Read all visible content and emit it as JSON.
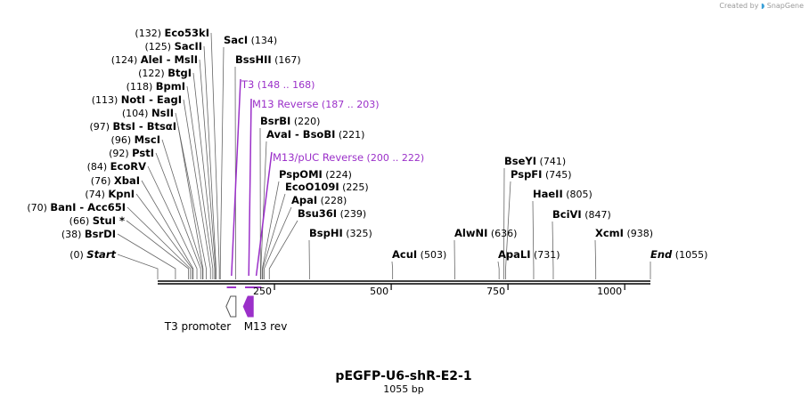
{
  "watermark": {
    "prefix": "Created by",
    "brand": "SnapGene"
  },
  "plasmid": {
    "name": "pEGFP-U6-shR-E2-1",
    "length_label": "1055 bp",
    "length": 1055
  },
  "colors": {
    "feature": "#9b30c9",
    "line": "#666666",
    "backbone": "#000000"
  },
  "ruler": {
    "ticks": [
      250,
      500,
      750,
      1000
    ]
  },
  "sites": [
    {
      "name": "Start",
      "pos": 0,
      "label_pos": "(0)",
      "italic": true,
      "side": "left"
    },
    {
      "name": "BsrDI",
      "pos": 38,
      "label_pos": "(38)",
      "side": "left"
    },
    {
      "name": "StuI *",
      "pos": 66,
      "label_pos": "(66)",
      "side": "left"
    },
    {
      "name": "BanI  -  Acc65I",
      "pos": 70,
      "label_pos": "(70)",
      "side": "left"
    },
    {
      "name": "KpnI",
      "pos": 74,
      "label_pos": "(74)",
      "side": "left"
    },
    {
      "name": "XbaI",
      "pos": 76,
      "label_pos": "(76)",
      "side": "left"
    },
    {
      "name": "EcoRV",
      "pos": 84,
      "label_pos": "(84)",
      "side": "left"
    },
    {
      "name": "PstI",
      "pos": 92,
      "label_pos": "(92)",
      "side": "left"
    },
    {
      "name": "MscI",
      "pos": 96,
      "label_pos": "(96)",
      "side": "left"
    },
    {
      "name": "BtsI  -  BtsαI",
      "pos": 97,
      "label_pos": "(97)",
      "side": "left"
    },
    {
      "name": "NsII",
      "pos": 104,
      "label_pos": "(104)",
      "side": "left"
    },
    {
      "name": "NotI  -  EagI",
      "pos": 113,
      "label_pos": "(113)",
      "side": "left"
    },
    {
      "name": "BpmI",
      "pos": 118,
      "label_pos": "(118)",
      "side": "left"
    },
    {
      "name": "BtgI",
      "pos": 122,
      "label_pos": "(122)",
      "side": "left"
    },
    {
      "name": "AleI  -  MslI",
      "pos": 124,
      "label_pos": "(124)",
      "side": "left"
    },
    {
      "name": "SacII",
      "pos": 125,
      "label_pos": "(125)",
      "side": "left"
    },
    {
      "name": "Eco53kI",
      "pos": 132,
      "label_pos": "(132)",
      "side": "left"
    },
    {
      "name": "SacI",
      "pos": 134,
      "label_pos": "(134)",
      "side": "right"
    },
    {
      "name": "BssHII",
      "pos": 167,
      "label_pos": "(167)",
      "side": "right"
    },
    {
      "name": "BsrBI",
      "pos": 220,
      "label_pos": "(220)",
      "side": "right"
    },
    {
      "name": "AvaI  -  BsoBI",
      "pos": 221,
      "label_pos": "(221)",
      "side": "right"
    },
    {
      "name": "PspOMI",
      "pos": 224,
      "label_pos": "(224)",
      "side": "right"
    },
    {
      "name": "EcoO109I",
      "pos": 225,
      "label_pos": "(225)",
      "side": "right"
    },
    {
      "name": "ApaI",
      "pos": 228,
      "label_pos": "(228)",
      "side": "right"
    },
    {
      "name": "Bsu36I",
      "pos": 239,
      "label_pos": "(239)",
      "side": "right"
    },
    {
      "name": "BspHI",
      "pos": 325,
      "label_pos": "(325)",
      "side": "right"
    },
    {
      "name": "AcuI",
      "pos": 503,
      "label_pos": "(503)",
      "side": "right"
    },
    {
      "name": "AlwNI",
      "pos": 636,
      "label_pos": "(636)",
      "side": "right"
    },
    {
      "name": "ApaLI",
      "pos": 731,
      "label_pos": "(731)",
      "side": "right"
    },
    {
      "name": "BseYI",
      "pos": 741,
      "label_pos": "(741)",
      "side": "right"
    },
    {
      "name": "PspFI",
      "pos": 745,
      "label_pos": "(745)",
      "side": "right"
    },
    {
      "name": "HaeII",
      "pos": 805,
      "label_pos": "(805)",
      "side": "right"
    },
    {
      "name": "BciVI",
      "pos": 847,
      "label_pos": "(847)",
      "side": "right"
    },
    {
      "name": "XcmI",
      "pos": 938,
      "label_pos": "(938)",
      "side": "right"
    },
    {
      "name": "End",
      "pos": 1055,
      "label_pos": "(1055)",
      "italic": true,
      "side": "right"
    }
  ],
  "primers": [
    {
      "name": "T3",
      "range": "(148 .. 168)",
      "start": 148,
      "end": 168
    },
    {
      "name": "M13 Reverse",
      "range": "(187 .. 203)",
      "start": 187,
      "end": 203
    },
    {
      "name": "M13/pUC Reverse",
      "range": "(200 .. 222)",
      "start": 200,
      "end": 222
    }
  ],
  "features": [
    {
      "name": "T3 promoter",
      "start": 148,
      "end": 168,
      "direction": "reverse",
      "filled": false
    },
    {
      "name": "M13 rev",
      "start": 187,
      "end": 203,
      "direction": "reverse",
      "filled": true
    }
  ]
}
